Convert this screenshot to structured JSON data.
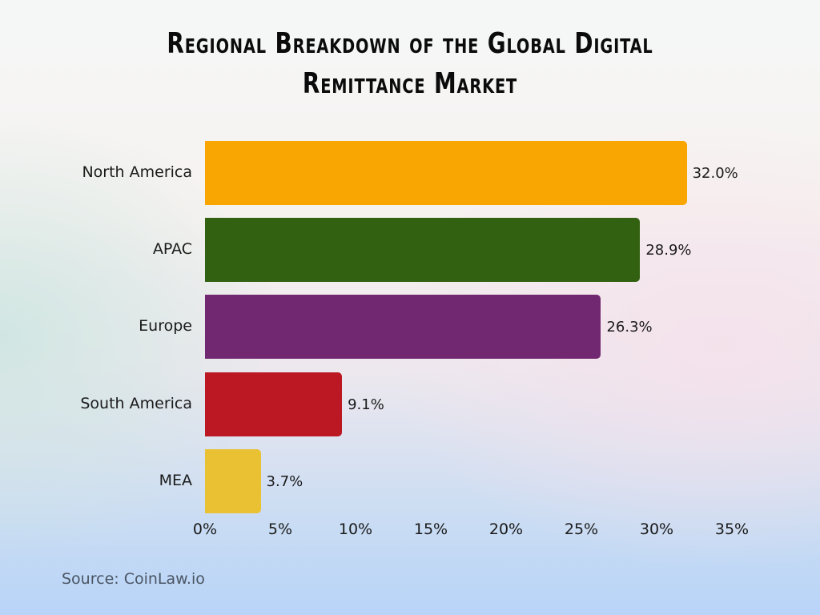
{
  "title": {
    "line1": "Regional Breakdown of the Global Digital",
    "line2": "Remittance Market"
  },
  "chart_data": {
    "type": "bar",
    "orientation": "horizontal",
    "title": "Regional Breakdown of the Global Digital Remittance Market",
    "xlabel": "",
    "ylabel": "",
    "categories": [
      "North America",
      "APAC",
      "Europe",
      "South America",
      "MEA"
    ],
    "values": [
      32.0,
      28.9,
      26.3,
      9.1,
      3.7
    ],
    "value_labels": [
      "32.0%",
      "28.9%",
      "26.3%",
      "9.1%",
      "3.7%"
    ],
    "colors": [
      "#F9A602",
      "#336112",
      "#722870",
      "#BC1823",
      "#EAC133"
    ],
    "xlim": [
      0,
      35
    ],
    "x_ticks": [
      "0%",
      "5%",
      "10%",
      "15%",
      "20%",
      "25%",
      "30%",
      "35%"
    ],
    "grid": false,
    "legend": "none"
  },
  "source": "Source: CoinLaw.io"
}
